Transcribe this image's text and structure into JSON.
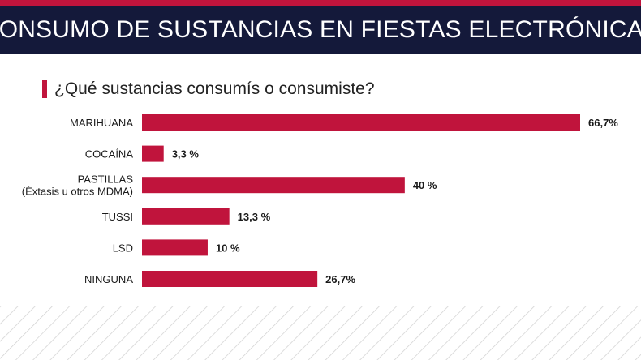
{
  "header": {
    "title": "CONSUMO DE SUSTANCIAS EN FIESTAS ELECTRÓNICAS"
  },
  "colors": {
    "navy": "#14193a",
    "accent": "#c0143c"
  },
  "chart_data": {
    "type": "bar",
    "orientation": "horizontal",
    "title": "¿Qué sustancias consumís o consumiste?",
    "categories": [
      [
        "MARIHUANA"
      ],
      [
        "COCAÍNA"
      ],
      [
        "PASTILLAS",
        "(Éxtasis u otros MDMA)"
      ],
      [
        "TUSSI"
      ],
      [
        "LSD"
      ],
      [
        "NINGUNA"
      ]
    ],
    "values": [
      66.7,
      3.3,
      40,
      13.3,
      10,
      26.7
    ],
    "value_labels": [
      "66,7%",
      "3,3 %",
      "40 %",
      "13,3 %",
      "10 %",
      "26,7%"
    ],
    "xlim": [
      0,
      100
    ],
    "grid": false,
    "bar_color": "#c0143c"
  }
}
